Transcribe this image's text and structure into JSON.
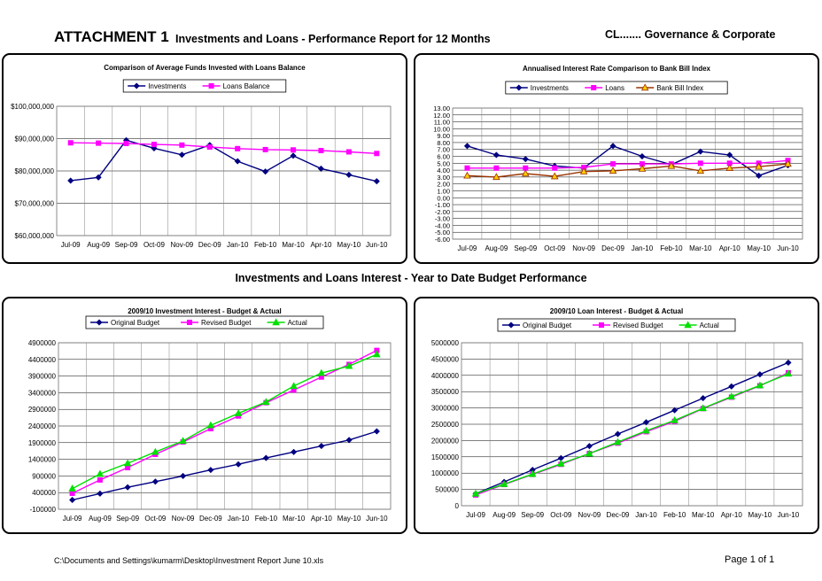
{
  "header": {
    "attachment": "ATTACHMENT 1",
    "title": "Investments and Loans - Performance Report for 12 Months",
    "right": "CL....... Governance &  Corporate"
  },
  "section_title": "Investments and Loans Interest - Year to Date Budget Performance",
  "footer": {
    "path": "C:\\Documents and Settings\\kumarm\\Desktop\\Investment Report June 10.xls",
    "page": "Page 1 of 1"
  },
  "colors": {
    "navy": "#000080",
    "magenta": "#ff00ff",
    "green": "#00e000",
    "brown": "#993300",
    "orange": "#ffcc00"
  },
  "chart_data": [
    {
      "type": "line",
      "title": "Comparison of Average Funds Invested with Loans Balance",
      "categories": [
        "Jul-09",
        "Aug-09",
        "Sep-09",
        "Oct-09",
        "Nov-09",
        "Dec-09",
        "Jan-10",
        "Feb-10",
        "Mar-10",
        "Apr-10",
        "May-10",
        "Jun-10"
      ],
      "ylim": [
        60000000,
        100000000
      ],
      "ytick_step": 10000000,
      "yticks": [
        "$60,000,000",
        "$70,000,000",
        "$80,000,000",
        "$90,000,000",
        "$100,000,000"
      ],
      "grid": true,
      "legend": "top-center",
      "series": [
        {
          "name": "Investments",
          "color": "#000080",
          "marker": "diamond",
          "values": [
            77000000,
            78000000,
            89500000,
            87000000,
            85000000,
            88000000,
            83000000,
            79800000,
            84700000,
            80700000,
            78800000,
            76800000
          ]
        },
        {
          "name": "Loans Balance",
          "color": "#ff00ff",
          "marker": "square",
          "values": [
            88700000,
            88600000,
            88500000,
            88200000,
            88000000,
            87400000,
            86900000,
            86600000,
            86500000,
            86300000,
            85900000,
            85400000
          ]
        }
      ]
    },
    {
      "type": "line",
      "title": "Annualised Interest Rate Comparison to Bank Bill Index",
      "categories": [
        "Jul-09",
        "Aug-09",
        "Sep-09",
        "Oct-09",
        "Nov-09",
        "Dec-09",
        "Jan-10",
        "Feb-10",
        "Mar-10",
        "Apr-10",
        "May-10",
        "Jun-10"
      ],
      "ylim": [
        -6,
        13
      ],
      "ytick_step": 1,
      "yticks": [
        "-6.00",
        "-5.00",
        "-4.00",
        "-3.00",
        "-2.00",
        "-1.00",
        "0.00",
        "1.00",
        "2.00",
        "3.00",
        "4.00",
        "5.00",
        "6.00",
        "7.00",
        "8.00",
        "9.00",
        "10.00",
        "11.00",
        "12.00",
        "13.00"
      ],
      "grid": true,
      "legend": "top-center",
      "series": [
        {
          "name": "Investments",
          "color": "#000080",
          "marker": "diamond",
          "values": [
            7.5,
            6.2,
            5.6,
            4.6,
            4.3,
            7.5,
            6.0,
            4.8,
            6.7,
            6.2,
            3.2,
            4.7
          ]
        },
        {
          "name": "Loans",
          "color": "#ff00ff",
          "marker": "square",
          "values": [
            4.3,
            4.3,
            4.3,
            4.3,
            4.4,
            4.9,
            4.9,
            4.9,
            5.0,
            5.0,
            5.0,
            5.4
          ]
        },
        {
          "name": "Bank Bill Index",
          "color": "#993300",
          "fill": "#ffcc00",
          "marker": "triangle",
          "values": [
            3.2,
            3.0,
            3.5,
            3.1,
            3.8,
            3.9,
            4.2,
            4.6,
            3.9,
            4.3,
            4.5,
            4.9
          ]
        }
      ]
    },
    {
      "type": "line",
      "title": "2009/10 Investment Interest - Budget & Actual",
      "categories": [
        "Jul-09",
        "Aug-09",
        "Sep-09",
        "Oct-09",
        "Nov-09",
        "Dec-09",
        "Jan-10",
        "Feb-10",
        "Mar-10",
        "Apr-10",
        "May-10",
        "Jun-10"
      ],
      "ylim": [
        -100000,
        4900000
      ],
      "ytick_step": 500000,
      "yticks": [
        "-100000",
        "400000",
        "900000",
        "1400000",
        "1900000",
        "2400000",
        "2900000",
        "3400000",
        "3900000",
        "4400000",
        "4900000"
      ],
      "grid": true,
      "legend": "top-center",
      "series": [
        {
          "name": "Original Budget",
          "color": "#000080",
          "marker": "diamond",
          "values": [
            180000,
            370000,
            560000,
            730000,
            900000,
            1080000,
            1250000,
            1440000,
            1620000,
            1800000,
            1980000,
            2240000
          ]
        },
        {
          "name": "Revised Budget",
          "color": "#ff00ff",
          "marker": "square",
          "values": [
            380000,
            780000,
            1150000,
            1550000,
            1920000,
            2320000,
            2700000,
            3100000,
            3480000,
            3870000,
            4250000,
            4670000
          ]
        },
        {
          "name": "Actual",
          "color": "#00e000",
          "marker": "triangle",
          "values": [
            520000,
            960000,
            1280000,
            1620000,
            1950000,
            2420000,
            2780000,
            3120000,
            3600000,
            3990000,
            4200000,
            4550000
          ]
        }
      ]
    },
    {
      "type": "line",
      "title": "2009/10 Loan Interest - Budget & Actual",
      "categories": [
        "Jul-09",
        "Aug-09",
        "Sep-09",
        "Oct-09",
        "Nov-09",
        "Dec-09",
        "Jan-10",
        "Feb-10",
        "Mar-10",
        "Apr-10",
        "May-10",
        "Jun-10"
      ],
      "ylim": [
        0,
        5000000
      ],
      "ytick_step": 500000,
      "yticks": [
        "0",
        "500000",
        "1000000",
        "1500000",
        "2000000",
        "2500000",
        "3000000",
        "3500000",
        "4000000",
        "4500000",
        "5000000"
      ],
      "grid": true,
      "legend": "top-center",
      "series": [
        {
          "name": "Original Budget",
          "color": "#000080",
          "marker": "diamond",
          "values": [
            370000,
            730000,
            1100000,
            1460000,
            1830000,
            2200000,
            2560000,
            2930000,
            3300000,
            3660000,
            4030000,
            4390000
          ]
        },
        {
          "name": "Revised Budget",
          "color": "#ff00ff",
          "marker": "square",
          "values": [
            330000,
            650000,
            960000,
            1270000,
            1600000,
            1920000,
            2270000,
            2590000,
            2980000,
            3330000,
            3680000,
            4080000
          ]
        },
        {
          "name": "Actual",
          "color": "#00e000",
          "marker": "triangle",
          "values": [
            370000,
            660000,
            970000,
            1290000,
            1600000,
            1950000,
            2300000,
            2620000,
            2990000,
            3350000,
            3690000,
            4050000
          ]
        }
      ]
    }
  ]
}
